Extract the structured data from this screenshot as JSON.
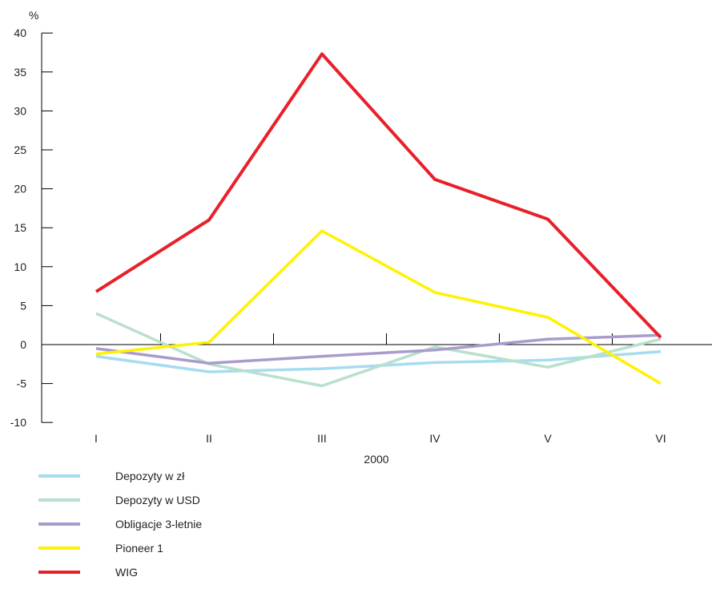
{
  "chart_data": {
    "type": "line",
    "ylabel": "%",
    "xlabel": "2000",
    "categories": [
      "I",
      "II",
      "III",
      "IV",
      "V",
      "VI"
    ],
    "yticks": [
      40,
      35,
      30,
      25,
      20,
      15,
      10,
      5,
      0,
      -5,
      -10
    ],
    "ylim": [
      -10,
      40
    ],
    "grid": false,
    "legend_position": "bottom-left",
    "series": [
      {
        "name": "Depozyty w zł",
        "color": "#a6dcef",
        "values": [
          -1.5,
          -3.5,
          -3.1,
          -2.3,
          -2.0,
          -0.9
        ]
      },
      {
        "name": "Depozyty w USD",
        "color": "#b8e0cc",
        "values": [
          4.0,
          -2.5,
          -5.3,
          -0.3,
          -2.9,
          0.7
        ]
      },
      {
        "name": "Obligacje 3-letnie",
        "color": "#a99bcc",
        "values": [
          -0.5,
          -2.4,
          -1.5,
          -0.7,
          0.7,
          1.2
        ]
      },
      {
        "name": "Pioneer 1",
        "color": "#fff200",
        "values": [
          -1.2,
          0.3,
          14.6,
          6.7,
          3.5,
          -5.0
        ]
      },
      {
        "name": "WIG",
        "color": "#e8202a",
        "values": [
          6.8,
          16.0,
          37.3,
          21.2,
          16.1,
          0.9
        ]
      }
    ]
  }
}
